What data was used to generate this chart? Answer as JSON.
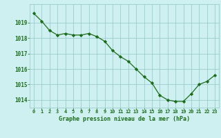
{
  "x": [
    0,
    1,
    2,
    3,
    4,
    5,
    6,
    7,
    8,
    9,
    10,
    11,
    12,
    13,
    14,
    15,
    16,
    17,
    18,
    19,
    20,
    21,
    22,
    23
  ],
  "y": [
    1019.6,
    1019.1,
    1018.5,
    1018.2,
    1018.3,
    1018.2,
    1018.2,
    1018.3,
    1018.1,
    1017.8,
    1017.2,
    1016.8,
    1016.5,
    1016.0,
    1015.5,
    1015.1,
    1014.3,
    1014.0,
    1013.9,
    1013.9,
    1014.4,
    1015.0,
    1015.2,
    1015.6
  ],
  "line_color": "#1a6b1a",
  "marker": "D",
  "marker_size": 2.2,
  "bg_color": "#cff0f0",
  "grid_color": "#99cccc",
  "xlabel": "Graphe pression niveau de la mer (hPa)",
  "xlabel_color": "#1a6b1a",
  "tick_color": "#1a6b1a",
  "ylim_min": 1013.5,
  "ylim_max": 1020.2,
  "yticks": [
    1014,
    1015,
    1016,
    1017,
    1018,
    1019
  ],
  "xticks": [
    0,
    1,
    2,
    3,
    4,
    5,
    6,
    7,
    8,
    9,
    10,
    11,
    12,
    13,
    14,
    15,
    16,
    17,
    18,
    19,
    20,
    21,
    22,
    23
  ]
}
